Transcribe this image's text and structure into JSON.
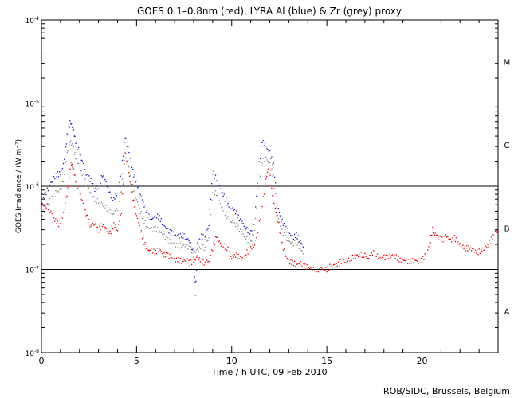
{
  "chart_data": {
    "type": "scatter",
    "title": "GOES 0.1–0.8nm (red), LYRA Al (blue) & Zr (grey) proxy",
    "xlabel": "Time / h UTC, 09 Feb 2010",
    "ylabel": "GOES Irradiance / (W m⁻²)",
    "credit": "ROB/SIDC, Brussels, Belgium",
    "xlim": [
      0,
      24
    ],
    "ylim_log10": [
      -8,
      -4
    ],
    "x_ticks": [
      {
        "value": 0,
        "label": "0"
      },
      {
        "value": 5,
        "label": "5"
      },
      {
        "value": 10,
        "label": "10"
      },
      {
        "value": 15,
        "label": "15"
      },
      {
        "value": 20,
        "label": "20"
      }
    ],
    "y_ticks": [
      {
        "exp": -8,
        "base": "10",
        "sup": "-8"
      },
      {
        "exp": -7,
        "base": "10",
        "sup": "-7"
      },
      {
        "exp": -6,
        "base": "10",
        "sup": "-6"
      },
      {
        "exp": -5,
        "base": "10",
        "sup": "-5"
      },
      {
        "exp": -4,
        "base": "10",
        "sup": "-4"
      }
    ],
    "flare_class_lines": [
      -7,
      -6,
      -5
    ],
    "flare_classes": [
      {
        "label": "A",
        "center_exp": -7.5
      },
      {
        "label": "B",
        "center_exp": -6.5
      },
      {
        "label": "C",
        "center_exp": -5.5
      },
      {
        "label": "M",
        "center_exp": -4.5
      }
    ],
    "series": [
      {
        "name": "GOES 0.1-0.8nm",
        "color": "#e00000",
        "points": [
          [
            0.0,
            6.5e-07
          ],
          [
            0.15,
            5.5e-07
          ],
          [
            0.3,
            5.8e-07
          ],
          [
            0.5,
            5e-07
          ],
          [
            0.7,
            4e-07
          ],
          [
            0.9,
            3.5e-07
          ],
          [
            1.1,
            4.2e-07
          ],
          [
            1.3,
            7e-07
          ],
          [
            1.45,
            1.2e-06
          ],
          [
            1.55,
            1.9e-06
          ],
          [
            1.65,
            1.7e-06
          ],
          [
            1.8,
            1.2e-06
          ],
          [
            2.0,
            8.5e-07
          ],
          [
            2.2,
            6e-07
          ],
          [
            2.4,
            4.2e-07
          ],
          [
            2.6,
            3.3e-07
          ],
          [
            2.8,
            3.6e-07
          ],
          [
            3.0,
            3e-07
          ],
          [
            3.2,
            3.4e-07
          ],
          [
            3.4,
            3e-07
          ],
          [
            3.6,
            2.7e-07
          ],
          [
            3.8,
            3.5e-07
          ],
          [
            4.0,
            3e-07
          ],
          [
            4.2,
            5e-07
          ],
          [
            4.4,
            2.6e-06
          ],
          [
            4.55,
            1.7e-06
          ],
          [
            4.7,
            1e-06
          ],
          [
            4.85,
            6.5e-07
          ],
          [
            5.0,
            4.5e-07
          ],
          [
            5.2,
            3e-07
          ],
          [
            5.4,
            2.1e-07
          ],
          [
            5.6,
            1.7e-07
          ],
          [
            5.8,
            1.7e-07
          ],
          [
            6.0,
            1.6e-07
          ],
          [
            6.2,
            1.8e-07
          ],
          [
            6.4,
            1.5e-07
          ],
          [
            6.6,
            1.5e-07
          ],
          [
            6.8,
            1.4e-07
          ],
          [
            7.0,
            1.3e-07
          ],
          [
            7.2,
            1.3e-07
          ],
          [
            7.4,
            1.25e-07
          ],
          [
            7.6,
            1.3e-07
          ],
          [
            7.8,
            1.2e-07
          ],
          [
            8.0,
            1.25e-07
          ],
          [
            8.2,
            1.4e-07
          ],
          [
            8.4,
            1.25e-07
          ],
          [
            8.6,
            1.2e-07
          ],
          [
            8.8,
            1.3e-07
          ],
          [
            9.0,
            1.8e-07
          ],
          [
            9.2,
            2.5e-07
          ],
          [
            9.4,
            2e-07
          ],
          [
            9.6,
            1.9e-07
          ],
          [
            9.8,
            1.8e-07
          ],
          [
            10.0,
            1.4e-07
          ],
          [
            10.2,
            1.5e-07
          ],
          [
            10.4,
            1.4e-07
          ],
          [
            10.6,
            1.3e-07
          ],
          [
            10.8,
            1.6e-07
          ],
          [
            11.0,
            1.8e-07
          ],
          [
            11.2,
            2e-07
          ],
          [
            11.4,
            3e-07
          ],
          [
            11.6,
            6e-07
          ],
          [
            11.8,
            1.2e-06
          ],
          [
            11.95,
            1.8e-06
          ],
          [
            12.1,
            9e-07
          ],
          [
            12.25,
            6e-07
          ],
          [
            12.4,
            4e-07
          ],
          [
            12.6,
            2.2e-07
          ],
          [
            12.8,
            1.5e-07
          ],
          [
            13.0,
            1.25e-07
          ],
          [
            13.2,
            1.2e-07
          ],
          [
            13.4,
            1.15e-07
          ],
          [
            13.6,
            1.2e-07
          ],
          [
            13.8,
            1.1e-07
          ],
          [
            14.0,
            1.05e-07
          ],
          [
            14.2,
            1.02e-07
          ],
          [
            14.4,
            1e-07
          ],
          [
            14.6,
            1e-07
          ],
          [
            14.8,
            1.05e-07
          ],
          [
            15.0,
            1e-07
          ],
          [
            15.2,
            1.1e-07
          ],
          [
            15.4,
            1.1e-07
          ],
          [
            15.6,
            1.15e-07
          ],
          [
            15.8,
            1.3e-07
          ],
          [
            16.0,
            1.25e-07
          ],
          [
            16.2,
            1.35e-07
          ],
          [
            16.4,
            1.4e-07
          ],
          [
            16.6,
            1.45e-07
          ],
          [
            16.8,
            1.5e-07
          ],
          [
            17.0,
            1.5e-07
          ],
          [
            17.2,
            1.4e-07
          ],
          [
            17.4,
            1.6e-07
          ],
          [
            17.6,
            1.5e-07
          ],
          [
            17.8,
            1.35e-07
          ],
          [
            18.0,
            1.4e-07
          ],
          [
            18.2,
            1.4e-07
          ],
          [
            18.4,
            1.5e-07
          ],
          [
            18.6,
            1.45e-07
          ],
          [
            18.8,
            1.3e-07
          ],
          [
            19.0,
            1.3e-07
          ],
          [
            19.2,
            1.25e-07
          ],
          [
            19.4,
            1.25e-07
          ],
          [
            19.6,
            1.3e-07
          ],
          [
            19.8,
            1.25e-07
          ],
          [
            20.0,
            1.3e-07
          ],
          [
            20.2,
            1.5e-07
          ],
          [
            20.4,
            2e-07
          ],
          [
            20.55,
            3e-07
          ],
          [
            20.7,
            2.7e-07
          ],
          [
            20.9,
            2.4e-07
          ],
          [
            21.1,
            2.3e-07
          ],
          [
            21.3,
            2.5e-07
          ],
          [
            21.5,
            2.2e-07
          ],
          [
            21.7,
            2.4e-07
          ],
          [
            21.9,
            2.1e-07
          ],
          [
            22.1,
            1.9e-07
          ],
          [
            22.3,
            1.8e-07
          ],
          [
            22.5,
            1.8e-07
          ],
          [
            22.7,
            1.7e-07
          ],
          [
            22.9,
            1.6e-07
          ],
          [
            23.1,
            1.7e-07
          ],
          [
            23.3,
            1.8e-07
          ],
          [
            23.5,
            2e-07
          ],
          [
            23.7,
            2.4e-07
          ],
          [
            23.9,
            2.9e-07
          ],
          [
            24.0,
            2.8e-07
          ]
        ]
      },
      {
        "name": "LYRA Al proxy",
        "color": "#1010c8",
        "points": [
          [
            0.0,
            6e-07
          ],
          [
            0.2,
            8e-07
          ],
          [
            0.4,
            1e-06
          ],
          [
            0.6,
            1.2e-06
          ],
          [
            0.8,
            1.4e-06
          ],
          [
            1.0,
            1.4e-06
          ],
          [
            1.2,
            2e-06
          ],
          [
            1.35,
            4e-06
          ],
          [
            1.5,
            6e-06
          ],
          [
            1.65,
            5e-06
          ],
          [
            1.8,
            3.5e-06
          ],
          [
            2.0,
            2.5e-06
          ],
          [
            2.2,
            1.8e-06
          ],
          [
            2.4,
            1.3e-06
          ],
          [
            2.6,
            1.2e-06
          ],
          [
            2.8,
            9e-07
          ],
          [
            3.0,
            1e-06
          ],
          [
            3.2,
            1.35e-06
          ],
          [
            3.4,
            1.1e-06
          ],
          [
            3.6,
            8e-07
          ],
          [
            3.8,
            7e-07
          ],
          [
            4.0,
            8.5e-07
          ],
          [
            4.2,
            1.5e-06
          ],
          [
            4.4,
            4e-06
          ],
          [
            4.6,
            2.5e-06
          ],
          [
            4.8,
            1.5e-06
          ],
          [
            5.0,
            1.1e-06
          ],
          [
            5.2,
            8e-07
          ],
          [
            5.4,
            6e-07
          ],
          [
            5.6,
            4.5e-07
          ],
          [
            5.8,
            4e-07
          ],
          [
            6.0,
            4.5e-07
          ],
          [
            6.2,
            4.2e-07
          ],
          [
            6.4,
            3.5e-07
          ],
          [
            6.6,
            3e-07
          ],
          [
            6.8,
            2.8e-07
          ],
          [
            7.0,
            2.6e-07
          ],
          [
            7.2,
            2.5e-07
          ],
          [
            7.4,
            2.6e-07
          ],
          [
            7.6,
            2.4e-07
          ],
          [
            7.8,
            2.2e-07
          ],
          [
            8.0,
            1.5e-07
          ],
          [
            8.1,
            5e-08
          ],
          [
            8.2,
            2e-07
          ],
          [
            8.4,
            2.5e-07
          ],
          [
            8.6,
            2.4e-07
          ],
          [
            8.8,
            3.5e-07
          ],
          [
            9.0,
            1.5e-06
          ],
          [
            9.2,
            1.2e-06
          ],
          [
            9.4,
            9e-07
          ],
          [
            9.6,
            7.5e-07
          ],
          [
            9.8,
            6e-07
          ],
          [
            10.0,
            5.5e-07
          ],
          [
            10.2,
            5e-07
          ],
          [
            10.4,
            4e-07
          ],
          [
            10.6,
            3.5e-07
          ],
          [
            10.8,
            3e-07
          ],
          [
            11.0,
            2.8e-07
          ],
          [
            11.2,
            4e-07
          ],
          [
            11.4,
            1.5e-06
          ],
          [
            11.6,
            3.5e-06
          ],
          [
            11.8,
            3e-06
          ],
          [
            12.0,
            2.5e-06
          ],
          [
            12.2,
            1.8e-06
          ],
          [
            12.4,
            6e-07
          ],
          [
            12.6,
            4e-07
          ],
          [
            12.8,
            3.2e-07
          ],
          [
            13.0,
            2.8e-07
          ],
          [
            13.2,
            2.4e-07
          ],
          [
            13.4,
            2.6e-07
          ],
          [
            13.6,
            2.2e-07
          ],
          [
            13.8,
            1.8e-07
          ]
        ]
      },
      {
        "name": "LYRA Zr proxy",
        "color": "#888888",
        "points": [
          [
            0.0,
            4.5e-07
          ],
          [
            0.2,
            5.5e-07
          ],
          [
            0.4,
            6.5e-07
          ],
          [
            0.6,
            7.5e-07
          ],
          [
            0.8,
            8.5e-07
          ],
          [
            1.0,
            9e-07
          ],
          [
            1.2,
            1.3e-06
          ],
          [
            1.35,
            2.5e-06
          ],
          [
            1.5,
            3.5e-06
          ],
          [
            1.65,
            3e-06
          ],
          [
            1.8,
            2.2e-06
          ],
          [
            2.0,
            1.7e-06
          ],
          [
            2.2,
            1.3e-06
          ],
          [
            2.4,
            1e-06
          ],
          [
            2.6,
            8.5e-07
          ],
          [
            2.8,
            7e-07
          ],
          [
            3.0,
            6.5e-07
          ],
          [
            3.2,
            6e-07
          ],
          [
            3.4,
            5.5e-07
          ],
          [
            3.6,
            5e-07
          ],
          [
            3.8,
            4.8e-07
          ],
          [
            4.0,
            5.5e-07
          ],
          [
            4.2,
            9e-07
          ],
          [
            4.4,
            2.5e-06
          ],
          [
            4.6,
            1.6e-06
          ],
          [
            4.8,
            1e-06
          ],
          [
            5.0,
            7e-07
          ],
          [
            5.2,
            5e-07
          ],
          [
            5.4,
            3.8e-07
          ],
          [
            5.6,
            3.2e-07
          ],
          [
            5.8,
            3e-07
          ],
          [
            6.0,
            3.1e-07
          ],
          [
            6.2,
            2.9e-07
          ],
          [
            6.4,
            2.6e-07
          ],
          [
            6.6,
            2.3e-07
          ],
          [
            6.8,
            2.1e-07
          ],
          [
            7.0,
            2e-07
          ],
          [
            7.2,
            1.9e-07
          ],
          [
            7.4,
            2e-07
          ],
          [
            7.6,
            1.9e-07
          ],
          [
            7.8,
            1.8e-07
          ],
          [
            8.0,
            1.6e-07
          ],
          [
            8.2,
            1.7e-07
          ],
          [
            8.4,
            1.9e-07
          ],
          [
            8.6,
            1.8e-07
          ],
          [
            8.8,
            2.5e-07
          ],
          [
            9.0,
            9e-07
          ],
          [
            9.2,
            8e-07
          ],
          [
            9.4,
            6e-07
          ],
          [
            9.6,
            5e-07
          ],
          [
            9.8,
            4.2e-07
          ],
          [
            10.0,
            3.8e-07
          ],
          [
            10.2,
            3.5e-07
          ],
          [
            10.4,
            3e-07
          ],
          [
            10.6,
            2.6e-07
          ],
          [
            10.8,
            2.3e-07
          ],
          [
            11.0,
            2.1e-07
          ],
          [
            11.2,
            3e-07
          ],
          [
            11.4,
            1e-06
          ],
          [
            11.6,
            2e-06
          ],
          [
            11.8,
            2.2e-06
          ],
          [
            12.0,
            1.8e-06
          ],
          [
            12.2,
            1.3e-06
          ],
          [
            12.4,
            4.5e-07
          ],
          [
            12.6,
            3e-07
          ],
          [
            12.8,
            2.5e-07
          ],
          [
            13.0,
            2.2e-07
          ],
          [
            13.2,
            2e-07
          ],
          [
            13.4,
            2.2e-07
          ],
          [
            13.6,
            1.8e-07
          ],
          [
            13.8,
            1.5e-07
          ]
        ]
      }
    ]
  }
}
